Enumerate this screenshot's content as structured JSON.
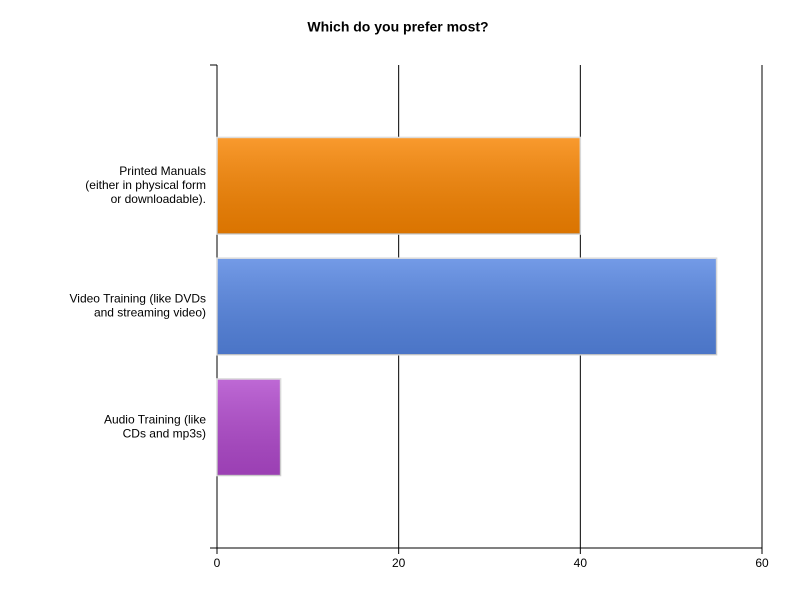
{
  "chart_data": {
    "type": "hbar",
    "title": "Which do you prefer most?",
    "categories": [
      [
        "Printed Manuals",
        "(either in physical form",
        "or downloadable)."
      ],
      [
        "Video Training (like DVDs",
        "and streaming video)"
      ],
      [
        "Audio Training (like",
        "CDs and mp3s)"
      ]
    ],
    "values": [
      40,
      55,
      7
    ],
    "colors": [
      "#f88400",
      "#5585e2",
      "#b048cc"
    ],
    "xlim": [
      0,
      60
    ],
    "xticks": [
      0,
      20,
      40,
      60
    ],
    "grid": true
  }
}
